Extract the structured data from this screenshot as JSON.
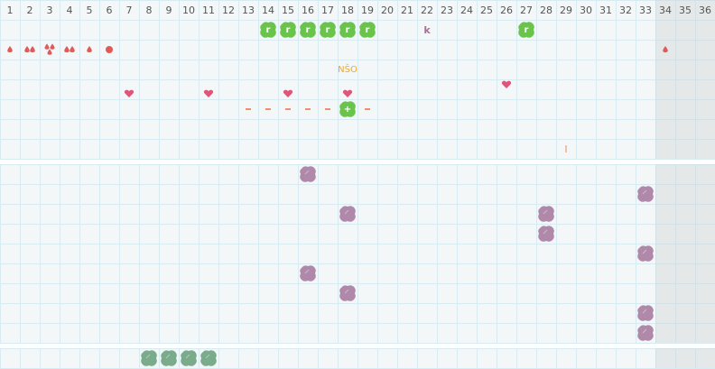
{
  "days": [
    "1",
    "2",
    "3",
    "4",
    "5",
    "6",
    "7",
    "8",
    "9",
    "10",
    "11",
    "12",
    "13",
    "14",
    "15",
    "16",
    "17",
    "18",
    "19",
    "20",
    "21",
    "22",
    "23",
    "24",
    "25",
    "26",
    "27",
    "28",
    "29",
    "30",
    "31",
    "32",
    "33",
    "34",
    "35",
    "36"
  ],
  "future_days_from": 34,
  "colors": {
    "green": "#6ac44c",
    "purple": "#b088aa",
    "dark_green": "#7aab8a",
    "drop": "#e05a5a",
    "heart": "#e0557a",
    "dash": "#f0906a",
    "nso": "#f5a623",
    "k": "#a8709a"
  },
  "top_section": {
    "rows": [
      {
        "markers": [
          {
            "day": 14,
            "icon": "green-blob",
            "letter": "r"
          },
          {
            "day": 15,
            "icon": "green-blob",
            "letter": "r"
          },
          {
            "day": 16,
            "icon": "green-blob",
            "letter": "r"
          },
          {
            "day": 17,
            "icon": "green-blob",
            "letter": "r"
          },
          {
            "day": 18,
            "icon": "green-blob",
            "letter": "r"
          },
          {
            "day": 19,
            "icon": "green-blob",
            "letter": "r"
          },
          {
            "day": 22,
            "icon": "text",
            "text": "k",
            "color": "k"
          },
          {
            "day": 27,
            "icon": "green-blob",
            "letter": "r"
          }
        ]
      },
      {
        "markers": [
          {
            "day": 1,
            "icon": "drop-1"
          },
          {
            "day": 2,
            "icon": "drop-2"
          },
          {
            "day": 3,
            "icon": "drop-3"
          },
          {
            "day": 4,
            "icon": "drop-2"
          },
          {
            "day": 5,
            "icon": "drop-1"
          },
          {
            "day": 6,
            "icon": "spot"
          },
          {
            "day": 34,
            "icon": "drop-1"
          }
        ]
      },
      {
        "markers": [
          {
            "day": 18,
            "icon": "text",
            "text": "NŠO",
            "color": "nso"
          }
        ]
      },
      {
        "markers": [
          {
            "day": 7,
            "icon": "heart"
          },
          {
            "day": 11,
            "icon": "heart"
          },
          {
            "day": 15,
            "icon": "heart"
          },
          {
            "day": 18,
            "icon": "heart"
          },
          {
            "day": 26,
            "icon": "heart",
            "raised": true
          }
        ]
      },
      {
        "markers": [
          {
            "day": 13,
            "icon": "dash"
          },
          {
            "day": 14,
            "icon": "dash"
          },
          {
            "day": 15,
            "icon": "dash"
          },
          {
            "day": 16,
            "icon": "dash"
          },
          {
            "day": 17,
            "icon": "dash"
          },
          {
            "day": 18,
            "icon": "green-blob",
            "letter": "+"
          },
          {
            "day": 19,
            "icon": "dash"
          }
        ]
      },
      {
        "markers": []
      },
      {
        "markers": [
          {
            "day": 29,
            "icon": "text",
            "text": "I",
            "color": "dash"
          }
        ]
      }
    ]
  },
  "middle_section": {
    "rows": [
      {
        "markers": [
          {
            "day": 16,
            "icon": "purple-blob"
          }
        ]
      },
      {
        "markers": [
          {
            "day": 33,
            "icon": "purple-blob"
          }
        ]
      },
      {
        "markers": [
          {
            "day": 18,
            "icon": "purple-blob"
          },
          {
            "day": 28,
            "icon": "purple-blob"
          }
        ]
      },
      {
        "markers": [
          {
            "day": 28,
            "icon": "purple-blob"
          }
        ]
      },
      {
        "markers": [
          {
            "day": 33,
            "icon": "purple-blob"
          }
        ]
      },
      {
        "markers": [
          {
            "day": 16,
            "icon": "purple-blob"
          }
        ]
      },
      {
        "markers": [
          {
            "day": 18,
            "icon": "purple-blob"
          }
        ]
      },
      {
        "markers": [
          {
            "day": 33,
            "icon": "purple-blob"
          }
        ]
      },
      {
        "markers": [
          {
            "day": 33,
            "icon": "purple-blob"
          }
        ]
      }
    ]
  },
  "bottom_section": {
    "rows": [
      {
        "markers": [
          {
            "day": 8,
            "icon": "dark-green-blob"
          },
          {
            "day": 9,
            "icon": "dark-green-blob"
          },
          {
            "day": 10,
            "icon": "dark-green-blob"
          },
          {
            "day": 11,
            "icon": "dark-green-blob"
          }
        ]
      }
    ]
  }
}
